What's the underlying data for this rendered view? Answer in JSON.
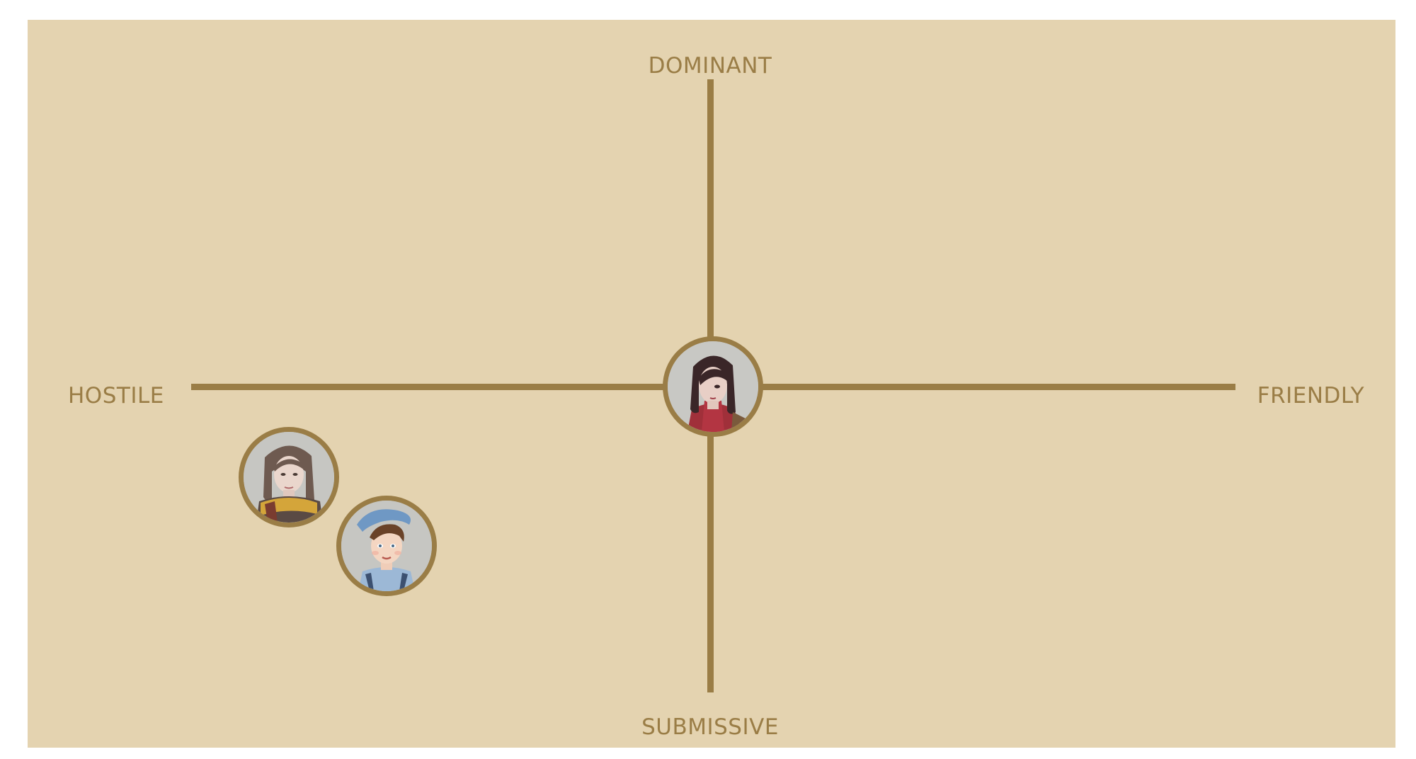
{
  "labels": {
    "top": "DOMINANT",
    "bottom": "SUBMISSIVE",
    "left": "HOSTILE",
    "right": "FRIENDLY"
  },
  "colors": {
    "background": "#e4d3b0",
    "accent": "#9a7d46",
    "avatar_bg": "#c4c4c0"
  },
  "avatars": [
    {
      "icon": "dark-haired-woman-portrait",
      "quadrant": "center"
    },
    {
      "icon": "woman-with-scarf-portrait",
      "quadrant": "hostile-submissive"
    },
    {
      "icon": "young-man-beret-portrait",
      "quadrant": "hostile-submissive"
    }
  ]
}
